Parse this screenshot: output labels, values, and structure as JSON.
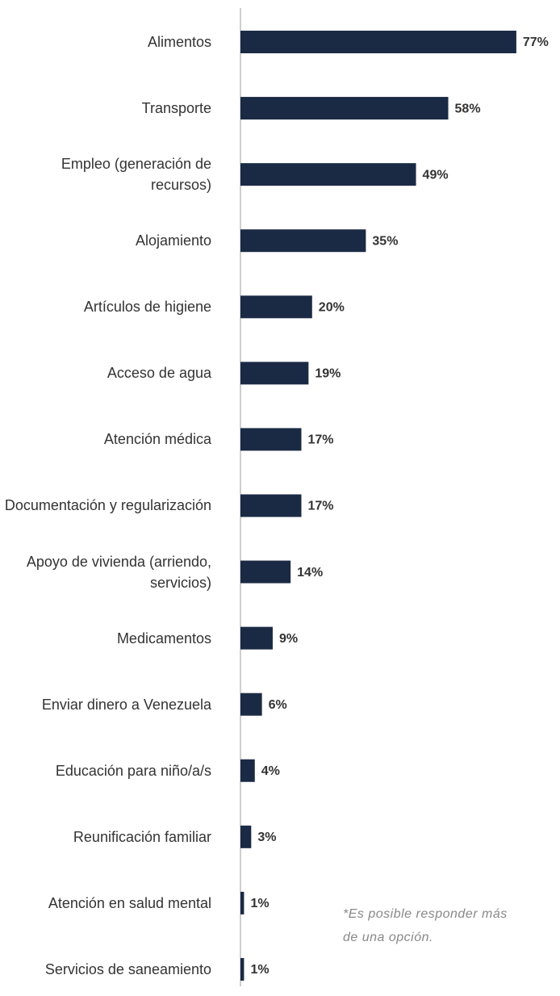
{
  "chart_data": {
    "type": "bar",
    "orientation": "horizontal",
    "categories": [
      "Alimentos",
      "Transporte",
      "Empleo (generación de recursos)",
      "Alojamiento",
      "Artículos de higiene",
      "Acceso de agua",
      "Atención médica",
      "Documentación y regularización",
      "Apoyo de vivienda (arriendo, servicios)",
      "Medicamentos",
      "Enviar dinero a Venezuela",
      "Educación para niño/a/s",
      "Reunificación familiar",
      "Atención en salud mental",
      "Servicios de saneamiento"
    ],
    "values": [
      77,
      58,
      49,
      35,
      20,
      19,
      17,
      17,
      14,
      9,
      6,
      4,
      3,
      1,
      1
    ],
    "value_labels": [
      "77%",
      "58%",
      "49%",
      "35%",
      "20%",
      "19%",
      "17%",
      "17%",
      "14%",
      "9%",
      "6%",
      "4%",
      "3%",
      "1%",
      "1%"
    ],
    "color": "#1b2a44",
    "note": "*Es posible responder más de una opción."
  }
}
